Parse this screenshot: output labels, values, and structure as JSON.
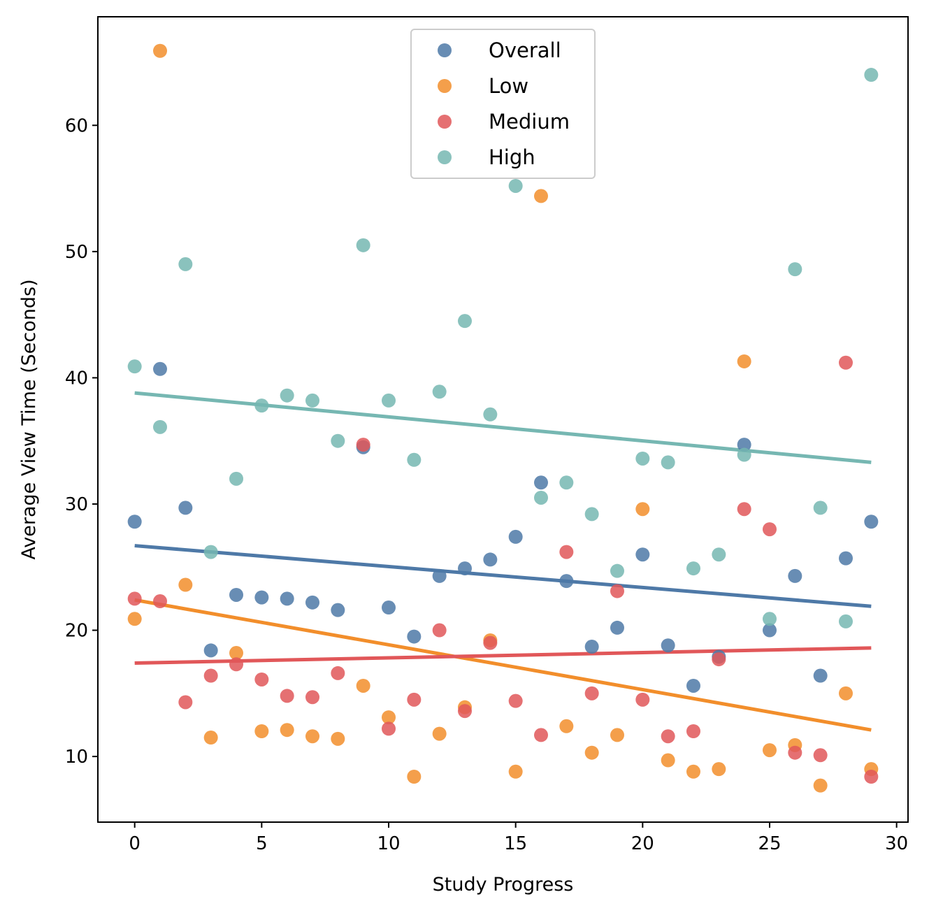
{
  "chart_data": {
    "type": "scatter",
    "xlabel": "Study Progress",
    "ylabel": "Average View Time (Seconds)",
    "xlim": [
      -1.45,
      30.45
    ],
    "ylim": [
      4.8,
      68.6
    ],
    "xticks": [
      0,
      5,
      10,
      15,
      20,
      25,
      30
    ],
    "yticks": [
      10,
      20,
      30,
      40,
      50,
      60
    ],
    "grid": false,
    "legend_position": "upper center",
    "x": [
      0,
      1,
      2,
      3,
      4,
      5,
      6,
      7,
      8,
      9,
      10,
      11,
      12,
      13,
      14,
      15,
      16,
      17,
      18,
      19,
      20,
      21,
      22,
      23,
      24,
      25,
      26,
      27,
      28,
      29
    ],
    "series": [
      {
        "name": "Overall",
        "color": "#4e79a7",
        "values": [
          28.6,
          40.7,
          29.7,
          18.4,
          22.8,
          22.6,
          22.5,
          22.2,
          21.6,
          34.5,
          21.8,
          19.5,
          24.3,
          24.9,
          25.6,
          27.4,
          31.7,
          23.9,
          18.7,
          20.2,
          26.0,
          18.8,
          15.6,
          17.9,
          34.7,
          20.0,
          24.3,
          16.4,
          25.7,
          28.6
        ],
        "trend": [
          26.7,
          21.9
        ]
      },
      {
        "name": "Low",
        "color": "#f28e2b",
        "values": [
          20.9,
          65.9,
          23.6,
          11.5,
          18.2,
          12.0,
          12.1,
          11.6,
          11.4,
          15.6,
          13.1,
          8.4,
          11.8,
          13.9,
          19.2,
          8.8,
          54.4,
          12.4,
          10.3,
          11.7,
          29.6,
          9.7,
          8.8,
          9.0,
          41.3,
          10.5,
          10.9,
          7.7,
          15.0,
          9.0
        ],
        "trend": [
          22.4,
          12.1
        ]
      },
      {
        "name": "Medium",
        "color": "#e15759",
        "values": [
          22.5,
          22.3,
          14.3,
          16.4,
          17.3,
          16.1,
          14.8,
          14.7,
          16.6,
          34.7,
          12.2,
          14.5,
          20.0,
          13.6,
          19.0,
          14.4,
          11.7,
          26.2,
          15.0,
          23.1,
          14.5,
          11.6,
          12.0,
          17.7,
          29.6,
          28.0,
          10.3,
          10.1,
          41.2,
          8.4
        ],
        "trend": [
          17.4,
          18.6
        ]
      },
      {
        "name": "High",
        "color": "#76b7b2",
        "values": [
          40.9,
          36.1,
          49.0,
          26.2,
          32.0,
          37.8,
          38.6,
          38.2,
          35.0,
          50.5,
          38.2,
          33.5,
          38.9,
          44.5,
          37.1,
          55.2,
          30.5,
          31.7,
          29.2,
          24.7,
          33.6,
          33.3,
          24.9,
          26.0,
          33.9,
          20.9,
          48.6,
          29.7,
          20.7,
          64.0
        ],
        "trend": [
          38.8,
          33.3
        ]
      }
    ]
  }
}
